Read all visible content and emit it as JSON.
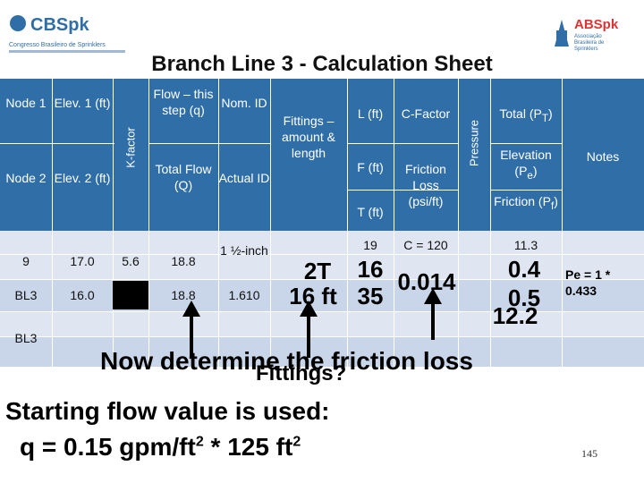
{
  "logos": {
    "left_brand": "CBSpk",
    "left_sub": "Congresso Brasileiro de Sprinklers",
    "right_brand": "ABSpk",
    "right_sub": "Associação Brasileira de Sprinklers"
  },
  "title": "Branch Line 3 - Calculation Sheet",
  "headers": {
    "node1": "Node 1",
    "elev1": "Elev. 1 (ft)",
    "kfactor": "K-factor",
    "flow_step": "Flow – this step (q)",
    "nom_id": "Nom. ID",
    "fittings": "Fittings – amount & length",
    "l_ft": "L (ft)",
    "c_factor": "C-Factor",
    "pressure": "Pressure",
    "total_pt": "Total (P",
    "node2": "Node 2",
    "elev2": "Elev. 2 (ft)",
    "total_flow": "Total Flow (Q)",
    "actual_id": "Actual ID",
    "f_ft": "F (ft)",
    "friction_loss": "Friction Loss (psi/ft)",
    "t_ft": "T (ft)",
    "elevation": "Elevation (P",
    "friction": "Friction (P",
    "notes": "Notes"
  },
  "rows": [
    {
      "node": "9",
      "elev": "17.0",
      "k": "5.6",
      "flow": "18.8",
      "nom": "1 ½-inch",
      "l": "19",
      "c": "C = 120",
      "pt": "11.3"
    },
    {
      "node": "BL3",
      "elev": "16.0",
      "flow": "18.8",
      "actual": "1.610"
    },
    {
      "node": "BL3"
    }
  ],
  "annotations": {
    "fit_top": "2T",
    "fit_bottom": "16 ft",
    "len_top": "16",
    "len_bottom": "35",
    "fl_value": "0.014",
    "pe_value": "0.4",
    "pf_value": "0.5",
    "pt_value": "12.2",
    "pe_note": "Pe = 1 * 0.433",
    "line1": "Now determine the friction loss",
    "line1_overlap": "Fittings?",
    "line2": "Starting flow value is used:",
    "line3": "q = 0.15 gpm/ft2 * 125 ft2"
  },
  "page_number": "145"
}
